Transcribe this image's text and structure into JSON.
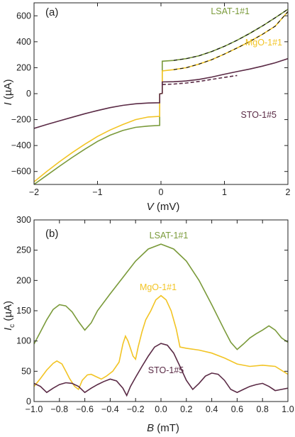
{
  "chart_data": [
    {
      "panel": "(a)",
      "type": "line",
      "xlabel_main": "V",
      "xlabel_unit": " (mV)",
      "ylabel_main": "I",
      "ylabel_unit": " (µA)",
      "xlim": [
        -2,
        2
      ],
      "ylim": [
        -700,
        700
      ],
      "xticks": [
        -2,
        -1,
        0,
        1,
        2
      ],
      "yticks": [
        -600,
        -400,
        -200,
        0,
        200,
        400,
        600
      ],
      "grid": false,
      "fit_style": "dashed-black",
      "series": [
        {
          "name": "LSAT-1#1",
          "color": "#7a9a3a",
          "points": [
            [
              -2,
              -700
            ],
            [
              -1.8,
              -630
            ],
            [
              -1.6,
              -560
            ],
            [
              -1.4,
              -492
            ],
            [
              -1.2,
              -428
            ],
            [
              -1.0,
              -368
            ],
            [
              -0.8,
              -320
            ],
            [
              -0.6,
              -284
            ],
            [
              -0.4,
              -260
            ],
            [
              -0.2,
              -250
            ],
            [
              -0.02,
              -245
            ],
            [
              -0.02,
              -2
            ],
            [
              0,
              0
            ],
            [
              0.02,
              2
            ],
            [
              0.02,
              250
            ],
            [
              0.2,
              256
            ],
            [
              0.4,
              270
            ],
            [
              0.6,
              292
            ],
            [
              0.8,
              325
            ],
            [
              1.0,
              365
            ],
            [
              1.2,
              412
            ],
            [
              1.4,
              465
            ],
            [
              1.6,
              522
            ],
            [
              1.8,
              585
            ],
            [
              2,
              650
            ]
          ]
        },
        {
          "name": "MgO-1#1",
          "color": "#f2c424",
          "points": [
            [
              -2,
              -680
            ],
            [
              -1.8,
              -600
            ],
            [
              -1.6,
              -525
            ],
            [
              -1.4,
              -455
            ],
            [
              -1.2,
              -390
            ],
            [
              -1.0,
              -330
            ],
            [
              -0.8,
              -280
            ],
            [
              -0.6,
              -238
            ],
            [
              -0.4,
              -200
            ],
            [
              -0.2,
              -180
            ],
            [
              -0.02,
              -175
            ],
            [
              -0.02,
              -2
            ],
            [
              0,
              0
            ],
            [
              0.02,
              2
            ],
            [
              0.02,
              175
            ],
            [
              0.2,
              185
            ],
            [
              0.4,
              200
            ],
            [
              0.6,
              228
            ],
            [
              0.8,
              262
            ],
            [
              1.0,
              305
            ],
            [
              1.2,
              352
            ],
            [
              1.4,
              402
            ],
            [
              1.6,
              458
            ],
            [
              1.8,
              520
            ],
            [
              2,
              632
            ]
          ]
        },
        {
          "name": "STO-1#5",
          "color": "#5a2a45",
          "points": [
            [
              -2,
              -268
            ],
            [
              -1.8,
              -238
            ],
            [
              -1.6,
              -210
            ],
            [
              -1.4,
              -182
            ],
            [
              -1.2,
              -155
            ],
            [
              -1.0,
              -130
            ],
            [
              -0.8,
              -108
            ],
            [
              -0.6,
              -90
            ],
            [
              -0.4,
              -78
            ],
            [
              -0.2,
              -72
            ],
            [
              -0.02,
              -70
            ],
            [
              -0.02,
              -2
            ],
            [
              0,
              0
            ],
            [
              0.02,
              2
            ],
            [
              0.02,
              90
            ],
            [
              0.2,
              92
            ],
            [
              0.4,
              98
            ],
            [
              0.6,
              110
            ],
            [
              0.8,
              128
            ],
            [
              1.0,
              150
            ],
            [
              1.2,
              170
            ],
            [
              1.4,
              190
            ],
            [
              1.6,
              212
            ],
            [
              1.8,
              238
            ],
            [
              2,
              270
            ]
          ]
        },
        {
          "name": "STO-1#5 (second branch)",
          "color": "#5a2a45",
          "dashed": true,
          "points": [
            [
              0.02,
              70
            ],
            [
              0.2,
              74
            ],
            [
              0.4,
              82
            ],
            [
              0.6,
              94
            ],
            [
              0.8,
              110
            ],
            [
              1.0,
              125
            ],
            [
              1.2,
              140
            ]
          ]
        }
      ]
    },
    {
      "panel": "(b)",
      "type": "line",
      "xlabel_main": "B",
      "xlabel_unit": " (mT)",
      "ylabel_main": "I",
      "ylabel_sub": "c",
      "ylabel_unit": " (µA)",
      "xlim": [
        -1.0,
        1.0
      ],
      "ylim": [
        0,
        300
      ],
      "xticks": [
        -1.0,
        -0.8,
        -0.6,
        -0.4,
        -0.2,
        0.0,
        0.2,
        0.4,
        0.6,
        0.8,
        1.0
      ],
      "yticks": [
        0,
        50,
        100,
        150,
        200,
        250,
        300
      ],
      "grid": false,
      "series": [
        {
          "name": "LSAT-1#1",
          "color": "#7a9a3a",
          "points": [
            [
              -1.0,
              95
            ],
            [
              -0.95,
              115
            ],
            [
              -0.9,
              135
            ],
            [
              -0.85,
              152
            ],
            [
              -0.8,
              160
            ],
            [
              -0.75,
              158
            ],
            [
              -0.7,
              148
            ],
            [
              -0.65,
              132
            ],
            [
              -0.6,
              118
            ],
            [
              -0.55,
              130
            ],
            [
              -0.5,
              150
            ],
            [
              -0.4,
              178
            ],
            [
              -0.3,
              205
            ],
            [
              -0.2,
              232
            ],
            [
              -0.1,
              252
            ],
            [
              0.0,
              260
            ],
            [
              0.1,
              252
            ],
            [
              0.2,
              232
            ],
            [
              0.3,
              200
            ],
            [
              0.4,
              160
            ],
            [
              0.5,
              118
            ],
            [
              0.55,
              98
            ],
            [
              0.6,
              86
            ],
            [
              0.65,
              95
            ],
            [
              0.7,
              105
            ],
            [
              0.75,
              112
            ],
            [
              0.8,
              118
            ],
            [
              0.85,
              125
            ],
            [
              0.9,
              118
            ],
            [
              0.95,
              105
            ],
            [
              1.0,
              98
            ]
          ]
        },
        {
          "name": "MgO-1#1",
          "color": "#f2c424",
          "points": [
            [
              -1.0,
              25
            ],
            [
              -0.95,
              38
            ],
            [
              -0.9,
              52
            ],
            [
              -0.85,
              63
            ],
            [
              -0.82,
              67
            ],
            [
              -0.78,
              62
            ],
            [
              -0.75,
              50
            ],
            [
              -0.72,
              38
            ],
            [
              -0.68,
              25
            ],
            [
              -0.65,
              20
            ],
            [
              -0.62,
              35
            ],
            [
              -0.58,
              44
            ],
            [
              -0.55,
              45
            ],
            [
              -0.5,
              40
            ],
            [
              -0.47,
              37
            ],
            [
              -0.43,
              42
            ],
            [
              -0.38,
              50
            ],
            [
              -0.33,
              65
            ],
            [
              -0.3,
              95
            ],
            [
              -0.28,
              108
            ],
            [
              -0.26,
              100
            ],
            [
              -0.22,
              75
            ],
            [
              -0.2,
              70
            ],
            [
              -0.18,
              90
            ],
            [
              -0.15,
              115
            ],
            [
              -0.12,
              135
            ],
            [
              -0.08,
              150
            ],
            [
              -0.04,
              168
            ],
            [
              0.0,
              175
            ],
            [
              0.04,
              168
            ],
            [
              0.08,
              150
            ],
            [
              0.12,
              120
            ],
            [
              0.15,
              90
            ],
            [
              0.2,
              88
            ],
            [
              0.3,
              85
            ],
            [
              0.4,
              80
            ],
            [
              0.5,
              72
            ],
            [
              0.6,
              62
            ],
            [
              0.7,
              58
            ],
            [
              0.8,
              60
            ],
            [
              0.9,
              58
            ],
            [
              1.0,
              45
            ]
          ]
        },
        {
          "name": "STO-1#5",
          "color": "#5a2a45",
          "points": [
            [
              -1.0,
              30
            ],
            [
              -0.95,
              25
            ],
            [
              -0.9,
              15
            ],
            [
              -0.85,
              22
            ],
            [
              -0.8,
              28
            ],
            [
              -0.75,
              31
            ],
            [
              -0.7,
              30
            ],
            [
              -0.65,
              25
            ],
            [
              -0.6,
              15
            ],
            [
              -0.55,
              22
            ],
            [
              -0.5,
              28
            ],
            [
              -0.45,
              33
            ],
            [
              -0.4,
              37
            ],
            [
              -0.35,
              34
            ],
            [
              -0.3,
              22
            ],
            [
              -0.27,
              10
            ],
            [
              -0.24,
              25
            ],
            [
              -0.2,
              40
            ],
            [
              -0.15,
              58
            ],
            [
              -0.1,
              75
            ],
            [
              -0.05,
              90
            ],
            [
              0.0,
              96
            ],
            [
              0.05,
              93
            ],
            [
              0.1,
              80
            ],
            [
              0.15,
              58
            ],
            [
              0.2,
              35
            ],
            [
              0.25,
              20
            ],
            [
              0.3,
              30
            ],
            [
              0.35,
              42
            ],
            [
              0.4,
              47
            ],
            [
              0.45,
              45
            ],
            [
              0.5,
              35
            ],
            [
              0.55,
              20
            ],
            [
              0.6,
              15
            ],
            [
              0.65,
              20
            ],
            [
              0.7,
              25
            ],
            [
              0.75,
              28
            ],
            [
              0.8,
              30
            ],
            [
              0.85,
              25
            ],
            [
              0.9,
              18
            ],
            [
              0.95,
              20
            ],
            [
              1.0,
              22
            ]
          ]
        }
      ]
    }
  ]
}
